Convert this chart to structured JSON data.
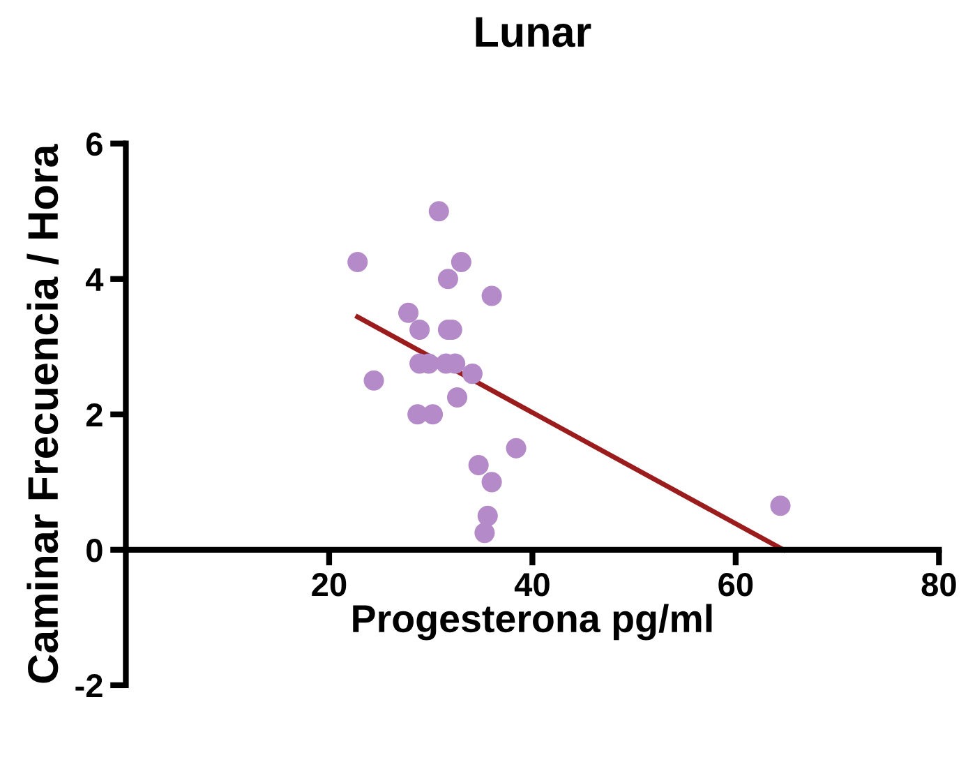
{
  "chart_data": {
    "type": "scatter",
    "title": "Lunar",
    "xlabel": "Progesterona pg/ml",
    "ylabel": "Caminar Frecuencia / Hora",
    "xlim": [
      0,
      80
    ],
    "ylim": [
      -2,
      6
    ],
    "xticks": [
      20,
      40,
      60,
      80
    ],
    "yticks": [
      -2,
      0,
      2,
      4,
      6
    ],
    "grid": false,
    "legend": false,
    "series": [
      {
        "marker": "circle",
        "color": "#b48ac8",
        "x": [
          22.8,
          30.8,
          33.0,
          31.7,
          36.0,
          27.8,
          28.9,
          31.7,
          32.1,
          28.9,
          29.8,
          31.5,
          32.4,
          24.4,
          34.1,
          32.6,
          28.7,
          30.2,
          38.4,
          34.7,
          36.0,
          35.6,
          35.3,
          64.4
        ],
        "values": [
          4.25,
          5.0,
          4.25,
          4.0,
          3.75,
          3.5,
          3.25,
          3.25,
          3.25,
          2.75,
          2.75,
          2.75,
          2.75,
          2.5,
          2.6,
          2.25,
          2.0,
          2.0,
          1.5,
          1.25,
          1.0,
          0.5,
          0.25,
          0.65
        ]
      },
      {
        "type": "line",
        "marker": "none",
        "color": "#9b1c1c",
        "line_style": "solid",
        "x": [
          22.8,
          64.7
        ],
        "values": [
          3.44,
          0
        ]
      }
    ]
  }
}
